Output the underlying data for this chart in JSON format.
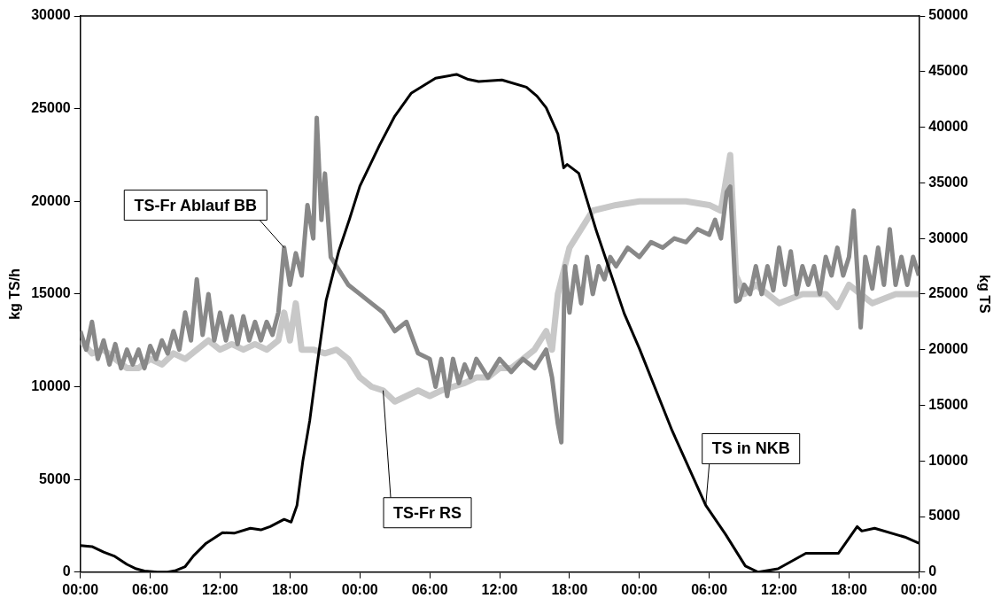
{
  "chart_data": {
    "type": "line",
    "ylabel": "kg TS/h",
    "y2label": "kg TS",
    "xlim": [
      "2000-01-01T00:00",
      "2000-01-04T00:00"
    ],
    "xticks": [
      {
        "value": "2000-01-01T00:00",
        "label": "00:00"
      },
      {
        "value": "2000-01-01T06:00",
        "label": "06:00"
      },
      {
        "value": "2000-01-01T12:00",
        "label": "12:00"
      },
      {
        "value": "2000-01-01T18:00",
        "label": "18:00"
      },
      {
        "value": "2000-01-02T00:00",
        "label": "00:00"
      },
      {
        "value": "2000-01-02T06:00",
        "label": "06:00"
      },
      {
        "value": "2000-01-02T12:00",
        "label": "12:00"
      },
      {
        "value": "2000-01-02T18:00",
        "label": "18:00"
      },
      {
        "value": "2000-01-03T00:00",
        "label": "00:00"
      },
      {
        "value": "2000-01-03T06:00",
        "label": "06:00"
      },
      {
        "value": "2000-01-03T12:00",
        "label": "12:00"
      },
      {
        "value": "2000-01-03T18:00",
        "label": "18:00"
      },
      {
        "value": "2000-01-04T00:00",
        "label": "00:00"
      }
    ],
    "ylim": [
      0,
      30000
    ],
    "yticks": [
      0,
      5000,
      10000,
      15000,
      20000,
      25000,
      30000
    ],
    "y2lim": [
      0,
      50000
    ],
    "y2ticks": [
      0,
      5000,
      10000,
      15000,
      20000,
      25000,
      30000,
      35000,
      40000,
      45000,
      50000
    ],
    "grid": false,
    "legend": false,
    "marker": "none",
    "line_style": "solid",
    "series": [
      {
        "name": "TS-Fr RS",
        "color": "#c8c8c8",
        "x": [
          "2000-01-01T00:00",
          "2000-01-01T01:00",
          "2000-01-01T02:00",
          "2000-01-01T03:00",
          "2000-01-01T04:00",
          "2000-01-01T05:00",
          "2000-01-01T06:00",
          "2000-01-01T07:00",
          "2000-01-01T08:00",
          "2000-01-01T09:00",
          "2000-01-01T10:00",
          "2000-01-01T11:00",
          "2000-01-01T12:00",
          "2000-01-01T13:00",
          "2000-01-01T14:00",
          "2000-01-01T15:00",
          "2000-01-01T16:00",
          "2000-01-01T17:00",
          "2000-01-01T17:30",
          "2000-01-01T18:00",
          "2000-01-01T18:30",
          "2000-01-01T19:00",
          "2000-01-01T20:00",
          "2000-01-01T21:00",
          "2000-01-01T22:00",
          "2000-01-01T23:00",
          "2000-01-02T00:00",
          "2000-01-02T01:00",
          "2000-01-02T02:00",
          "2000-01-02T03:00",
          "2000-01-02T04:00",
          "2000-01-02T05:00",
          "2000-01-02T06:00",
          "2000-01-02T07:00",
          "2000-01-02T08:00",
          "2000-01-02T09:00",
          "2000-01-02T10:00",
          "2000-01-02T11:00",
          "2000-01-02T12:00",
          "2000-01-02T13:00",
          "2000-01-02T14:00",
          "2000-01-02T15:00",
          "2000-01-02T16:00",
          "2000-01-02T16:30",
          "2000-01-02T17:00",
          "2000-01-02T18:00",
          "2000-01-02T19:00",
          "2000-01-02T20:00",
          "2000-01-02T22:00",
          "2000-01-03T00:00",
          "2000-01-03T02:00",
          "2000-01-03T04:00",
          "2000-01-03T06:00",
          "2000-01-03T07:00",
          "2000-01-03T07:48",
          "2000-01-03T08:18",
          "2000-01-03T09:00",
          "2000-01-03T10:00",
          "2000-01-03T12:00",
          "2000-01-03T14:00",
          "2000-01-03T16:00",
          "2000-01-03T17:00",
          "2000-01-03T18:00",
          "2000-01-03T19:00",
          "2000-01-03T20:00",
          "2000-01-03T22:00",
          "2000-01-04T00:00"
        ],
        "values": [
          12500,
          11800,
          12000,
          11500,
          11000,
          11000,
          11500,
          11200,
          11800,
          11500,
          12000,
          12500,
          12000,
          12300,
          12000,
          12300,
          12000,
          12500,
          14000,
          12500,
          14500,
          12000,
          12000,
          11800,
          12000,
          11500,
          10500,
          10000,
          9800,
          9200,
          9500,
          9800,
          9500,
          9800,
          10000,
          10200,
          10500,
          10500,
          11000,
          11000,
          11500,
          12000,
          13000,
          12000,
          15000,
          17500,
          18500,
          19500,
          19800,
          20000,
          20000,
          20000,
          19800,
          19500,
          22500,
          16000,
          15000,
          15500,
          14500,
          15000,
          15000,
          14300,
          15500,
          15000,
          14500,
          15000,
          15000
        ]
      },
      {
        "name": "TS-Fr Ablauf BB",
        "color": "#888888",
        "x": [
          "2000-01-01T00:00",
          "2000-01-01T00:30",
          "2000-01-01T01:00",
          "2000-01-01T01:30",
          "2000-01-01T02:00",
          "2000-01-01T02:30",
          "2000-01-01T03:00",
          "2000-01-01T03:30",
          "2000-01-01T04:00",
          "2000-01-01T04:30",
          "2000-01-01T05:00",
          "2000-01-01T05:30",
          "2000-01-01T06:00",
          "2000-01-01T06:30",
          "2000-01-01T07:00",
          "2000-01-01T07:30",
          "2000-01-01T08:00",
          "2000-01-01T08:30",
          "2000-01-01T09:00",
          "2000-01-01T09:30",
          "2000-01-01T10:00",
          "2000-01-01T10:30",
          "2000-01-01T11:00",
          "2000-01-01T11:30",
          "2000-01-01T12:00",
          "2000-01-01T12:30",
          "2000-01-01T13:00",
          "2000-01-01T13:30",
          "2000-01-01T14:00",
          "2000-01-01T14:30",
          "2000-01-01T15:00",
          "2000-01-01T15:30",
          "2000-01-01T16:00",
          "2000-01-01T16:30",
          "2000-01-01T17:00",
          "2000-01-01T17:30",
          "2000-01-01T18:00",
          "2000-01-01T18:30",
          "2000-01-01T19:00",
          "2000-01-01T19:30",
          "2000-01-01T20:00",
          "2000-01-01T20:18",
          "2000-01-01T20:42",
          "2000-01-01T21:00",
          "2000-01-01T21:30",
          "2000-01-01T22:00",
          "2000-01-01T23:00",
          "2000-01-02T00:00",
          "2000-01-02T01:00",
          "2000-01-02T02:00",
          "2000-01-02T03:00",
          "2000-01-02T04:00",
          "2000-01-02T05:00",
          "2000-01-02T06:00",
          "2000-01-02T06:30",
          "2000-01-02T07:00",
          "2000-01-02T07:30",
          "2000-01-02T08:00",
          "2000-01-02T08:30",
          "2000-01-02T09:00",
          "2000-01-02T09:30",
          "2000-01-02T10:00",
          "2000-01-02T11:00",
          "2000-01-02T12:00",
          "2000-01-02T13:00",
          "2000-01-02T14:00",
          "2000-01-02T15:00",
          "2000-01-02T16:00",
          "2000-01-02T16:30",
          "2000-01-02T17:00",
          "2000-01-02T17:18",
          "2000-01-02T17:36",
          "2000-01-02T18:00",
          "2000-01-02T18:30",
          "2000-01-02T19:00",
          "2000-01-02T19:30",
          "2000-01-02T20:00",
          "2000-01-02T20:30",
          "2000-01-02T21:00",
          "2000-01-02T21:30",
          "2000-01-02T22:00",
          "2000-01-02T23:00",
          "2000-01-03T00:00",
          "2000-01-03T01:00",
          "2000-01-03T02:00",
          "2000-01-03T03:00",
          "2000-01-03T04:00",
          "2000-01-03T05:00",
          "2000-01-03T06:00",
          "2000-01-03T06:30",
          "2000-01-03T07:00",
          "2000-01-03T07:30",
          "2000-01-03T07:48",
          "2000-01-03T08:18",
          "2000-01-03T08:36",
          "2000-01-03T09:00",
          "2000-01-03T09:30",
          "2000-01-03T10:00",
          "2000-01-03T10:30",
          "2000-01-03T11:00",
          "2000-01-03T11:30",
          "2000-01-03T12:00",
          "2000-01-03T12:30",
          "2000-01-03T13:00",
          "2000-01-03T13:30",
          "2000-01-03T14:00",
          "2000-01-03T14:30",
          "2000-01-03T15:00",
          "2000-01-03T15:30",
          "2000-01-03T16:00",
          "2000-01-03T16:30",
          "2000-01-03T17:00",
          "2000-01-03T17:30",
          "2000-01-03T18:00",
          "2000-01-03T18:24",
          "2000-01-03T19:00",
          "2000-01-03T19:24",
          "2000-01-03T20:00",
          "2000-01-03T20:30",
          "2000-01-03T21:00",
          "2000-01-03T21:30",
          "2000-01-03T22:00",
          "2000-01-03T22:30",
          "2000-01-03T23:00",
          "2000-01-03T23:30",
          "2000-01-04T00:00"
        ],
        "values": [
          13000,
          12000,
          13500,
          11500,
          12500,
          11200,
          12300,
          11000,
          12000,
          11200,
          12000,
          11000,
          12200,
          11500,
          12500,
          11800,
          13000,
          12000,
          14000,
          12500,
          15800,
          12800,
          15000,
          12500,
          14000,
          12500,
          13800,
          12300,
          13800,
          12500,
          13500,
          12500,
          13500,
          12800,
          14000,
          17500,
          15500,
          17200,
          16000,
          19800,
          18000,
          24500,
          19000,
          21500,
          17000,
          16500,
          15500,
          15000,
          14500,
          14000,
          13000,
          13500,
          11800,
          11500,
          10000,
          11500,
          9500,
          11500,
          10200,
          11200,
          10500,
          11500,
          10500,
          11500,
          10800,
          11500,
          11000,
          12000,
          10500,
          8000,
          7000,
          16500,
          14000,
          16500,
          14500,
          17000,
          15000,
          16500,
          15800,
          17000,
          16500,
          17500,
          17000,
          17800,
          17500,
          18000,
          17800,
          18500,
          18200,
          19000,
          18000,
          20500,
          20800,
          14600,
          14700,
          15500,
          15000,
          16500,
          15000,
          16500,
          15200,
          17500,
          15500,
          17300,
          15000,
          16500,
          15500,
          16500,
          15000,
          17000,
          16000,
          17500,
          16000,
          17000,
          19500,
          13200,
          17000,
          15300,
          17500,
          15500,
          18500,
          15500,
          17000,
          15500,
          17000,
          16000
        ]
      },
      {
        "name": "TS in NKB",
        "color": "#000000",
        "axis": "y2",
        "x": [
          "2000-01-01T00:00",
          "2000-01-01T01:00",
          "2000-01-01T02:00",
          "2000-01-01T02:54",
          "2000-01-01T04:00",
          "2000-01-01T04:48",
          "2000-01-01T05:30",
          "2000-01-01T06:36",
          "2000-01-01T07:30",
          "2000-01-01T08:12",
          "2000-01-01T09:00",
          "2000-01-01T09:42",
          "2000-01-01T10:48",
          "2000-01-01T12:12",
          "2000-01-01T13:12",
          "2000-01-01T14:36",
          "2000-01-01T15:30",
          "2000-01-01T16:18",
          "2000-01-01T17:30",
          "2000-01-01T18:06",
          "2000-01-01T18:36",
          "2000-01-01T19:06",
          "2000-01-01T19:42",
          "2000-01-01T20:18",
          "2000-01-01T21:06",
          "2000-01-01T22:12",
          "2000-01-01T23:06",
          "2000-01-02T00:00",
          "2000-01-02T01:42",
          "2000-01-02T03:00",
          "2000-01-02T04:24",
          "2000-01-02T06:30",
          "2000-01-02T08:18",
          "2000-01-02T09:18",
          "2000-01-02T10:12",
          "2000-01-02T12:12",
          "2000-01-02T14:18",
          "2000-01-02T15:12",
          "2000-01-02T16:00",
          "2000-01-02T17:00",
          "2000-01-02T17:30",
          "2000-01-02T17:48",
          "2000-01-02T18:48",
          "2000-01-02T20:18",
          "2000-01-02T22:42",
          "2000-01-03T00:00",
          "2000-01-03T02:48",
          "2000-01-03T05:42",
          "2000-01-03T07:24",
          "2000-01-03T09:06",
          "2000-01-03T10:12",
          "2000-01-03T11:54",
          "2000-01-03T14:18",
          "2000-01-03T17:06",
          "2000-01-03T18:42",
          "2000-01-03T19:06",
          "2000-01-03T20:12",
          "2000-01-03T22:48",
          "2000-01-04T00:00"
        ],
        "values": [
          2400,
          2300,
          1800,
          1450,
          700,
          300,
          100,
          0,
          0,
          150,
          500,
          1450,
          2600,
          3550,
          3500,
          3950,
          3800,
          4100,
          4750,
          4500,
          6000,
          9950,
          13650,
          18400,
          24400,
          28900,
          31700,
          34700,
          38400,
          41000,
          43050,
          44400,
          44750,
          44300,
          44100,
          44250,
          43600,
          42800,
          41750,
          39400,
          36350,
          36650,
          35850,
          30700,
          23250,
          20100,
          12750,
          6000,
          3400,
          550,
          0,
          300,
          1700,
          1700,
          4100,
          3700,
          3950,
          3150,
          2600
        ]
      }
    ]
  }
}
